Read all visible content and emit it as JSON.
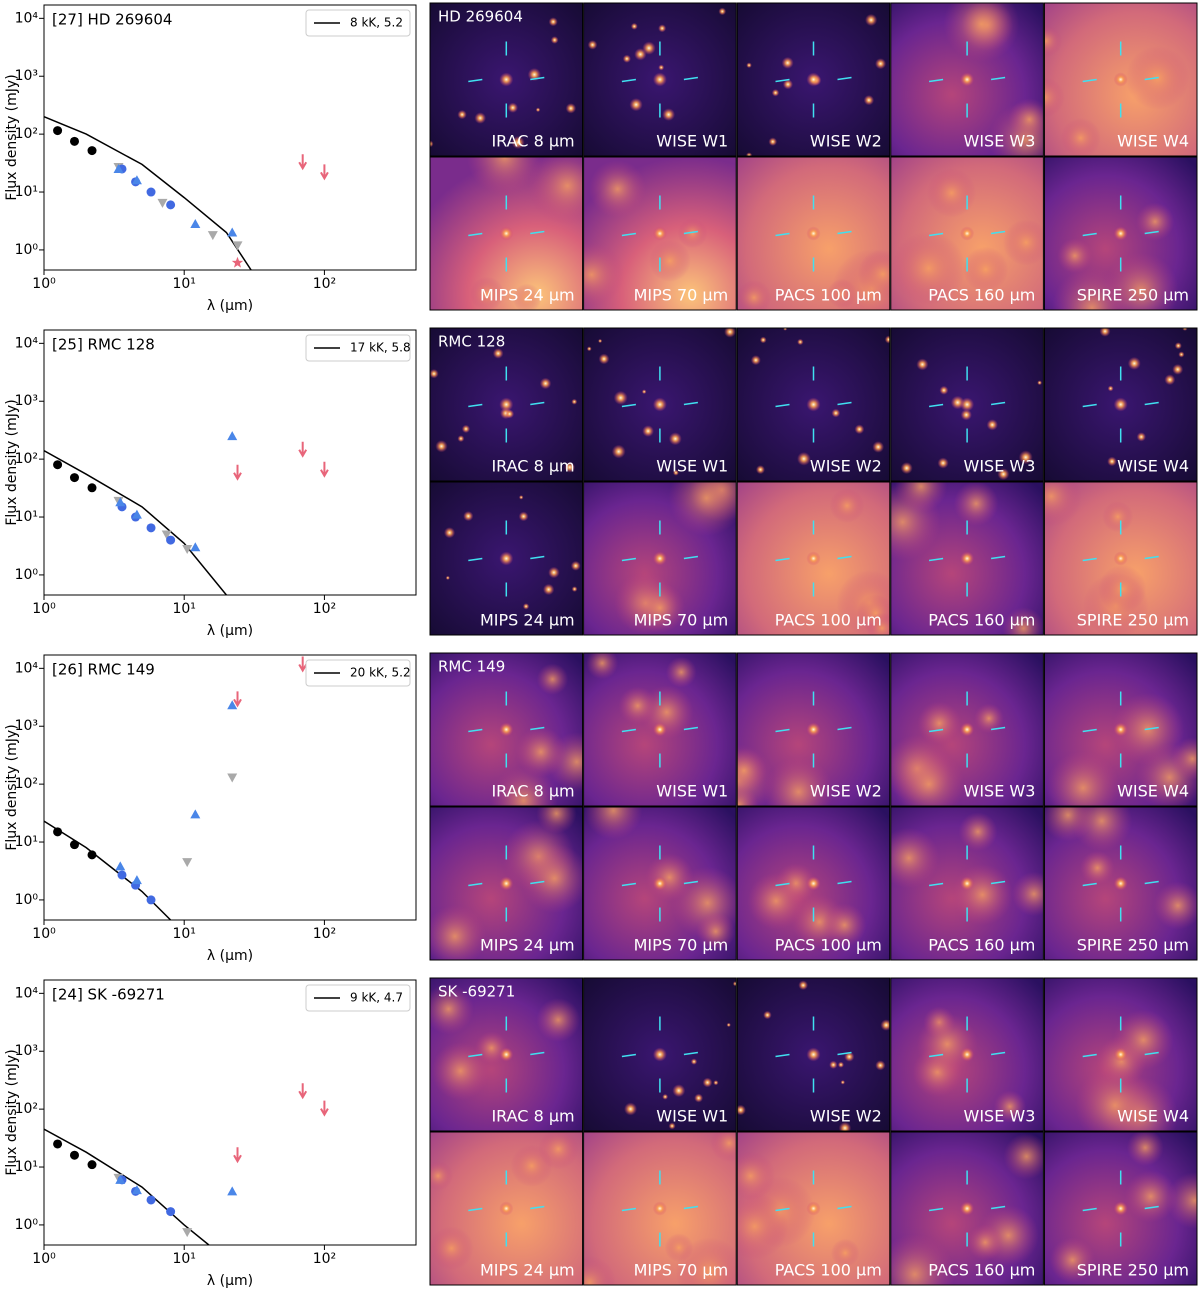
{
  "chart_data": [
    {
      "type": "scatter",
      "title": "[27] HD 269604",
      "xlabel": "λ (μm)",
      "ylabel": "Flux density (mJy)",
      "log_x": true,
      "log_y": true,
      "legend": "upper right",
      "xlim": [
        1,
        450
      ],
      "ylim": [
        0.45,
        17000
      ],
      "xticks": [
        {
          "value": 1,
          "label": "10⁰"
        },
        {
          "value": 10,
          "label": "10¹"
        },
        {
          "value": 100,
          "label": "10²"
        }
      ],
      "yticks": [
        {
          "value": 1,
          "label": "10⁰"
        },
        {
          "value": 10,
          "label": "10¹"
        },
        {
          "value": 100,
          "label": "10²"
        },
        {
          "value": 1000,
          "label": "10³"
        },
        {
          "value": 10000,
          "label": "10⁴"
        }
      ],
      "series": [
        {
          "name": "8 kK, 5.2",
          "color": "#000000",
          "marker": "line",
          "x": [
            1,
            2,
            5,
            10,
            20,
            30
          ],
          "values": [
            200,
            100,
            30,
            8,
            2,
            0.45
          ]
        },
        {
          "color": "#000000",
          "marker": "o",
          "x": [
            1.25,
            1.65,
            2.2
          ],
          "values": [
            115,
            75,
            52
          ]
        },
        {
          "color": "#a9a9a9",
          "marker": "v",
          "x": [
            3.4,
            7.0,
            16,
            24
          ],
          "values": [
            27,
            6.5,
            1.8,
            1.2
          ]
        },
        {
          "color": "#4169e1",
          "marker": "o",
          "x": [
            3.6,
            4.5,
            5.8,
            8.0
          ],
          "values": [
            25,
            15,
            10,
            6
          ]
        },
        {
          "color": "#4a86e8",
          "marker": "^",
          "x": [
            3.4,
            4.6,
            12,
            22
          ],
          "values": [
            25,
            16,
            2.8,
            2.0
          ]
        },
        {
          "color": "#e8657a",
          "marker": "*",
          "x": [
            24
          ],
          "values": [
            0.6
          ]
        },
        {
          "color": "#e8657a",
          "marker": "arrow",
          "x": [
            70,
            100
          ],
          "values": [
            45,
            30
          ]
        }
      ]
    },
    {
      "type": "scatter",
      "title": "[25] RMC 128",
      "xlabel": "λ (μm)",
      "ylabel": "Flux density (mJy)",
      "log_x": true,
      "log_y": true,
      "legend": "upper right",
      "xlim": [
        1,
        450
      ],
      "ylim": [
        0.45,
        17000
      ],
      "xticks": [
        {
          "value": 1,
          "label": "10⁰"
        },
        {
          "value": 10,
          "label": "10¹"
        },
        {
          "value": 100,
          "label": "10²"
        }
      ],
      "yticks": [
        {
          "value": 1,
          "label": "10⁰"
        },
        {
          "value": 10,
          "label": "10¹"
        },
        {
          "value": 100,
          "label": "10²"
        },
        {
          "value": 1000,
          "label": "10³"
        },
        {
          "value": 10000,
          "label": "10⁴"
        }
      ],
      "series": [
        {
          "name": "17 kK, 5.8",
          "color": "#000000",
          "marker": "line",
          "x": [
            1,
            2,
            5,
            10,
            20
          ],
          "values": [
            140,
            55,
            15,
            3.5,
            0.45
          ]
        },
        {
          "color": "#000000",
          "marker": "o",
          "x": [
            1.25,
            1.65,
            2.2
          ],
          "values": [
            80,
            48,
            32
          ]
        },
        {
          "color": "#a9a9a9",
          "marker": "v",
          "x": [
            3.4,
            7.5,
            10.5
          ],
          "values": [
            19,
            5,
            2.8
          ]
        },
        {
          "color": "#4169e1",
          "marker": "o",
          "x": [
            3.6,
            4.5,
            5.8,
            8.0
          ],
          "values": [
            15,
            10,
            6.5,
            4
          ]
        },
        {
          "color": "#4a86e8",
          "marker": "^",
          "x": [
            3.5,
            4.6,
            12,
            22
          ],
          "values": [
            18,
            11,
            3,
            250
          ]
        },
        {
          "color": "#e8657a",
          "marker": "arrow",
          "x": [
            24,
            70,
            100
          ],
          "values": [
            80,
            200,
            90
          ]
        }
      ]
    },
    {
      "type": "scatter",
      "title": "[26] RMC 149",
      "xlabel": "λ (μm)",
      "ylabel": "Flux density (mJy)",
      "log_x": true,
      "log_y": true,
      "legend": "upper right",
      "xlim": [
        1,
        450
      ],
      "ylim": [
        0.45,
        17000
      ],
      "xticks": [
        {
          "value": 1,
          "label": "10⁰"
        },
        {
          "value": 10,
          "label": "10¹"
        },
        {
          "value": 100,
          "label": "10²"
        }
      ],
      "yticks": [
        {
          "value": 1,
          "label": "10⁰"
        },
        {
          "value": 10,
          "label": "10¹"
        },
        {
          "value": 100,
          "label": "10²"
        },
        {
          "value": 1000,
          "label": "10³"
        },
        {
          "value": 10000,
          "label": "10⁴"
        }
      ],
      "series": [
        {
          "name": "20 kK, 5.2",
          "color": "#000000",
          "marker": "line",
          "x": [
            1,
            2,
            5,
            8
          ],
          "values": [
            23,
            8,
            1.4,
            0.45
          ]
        },
        {
          "color": "#000000",
          "marker": "o",
          "x": [
            1.25,
            1.65,
            2.2
          ],
          "values": [
            15,
            9,
            6
          ]
        },
        {
          "color": "#a9a9a9",
          "marker": "v",
          "x": [
            10.5,
            22
          ],
          "values": [
            4.5,
            130
          ]
        },
        {
          "color": "#4169e1",
          "marker": "o",
          "x": [
            3.6,
            4.5,
            5.8
          ],
          "values": [
            2.7,
            1.8,
            1
          ]
        },
        {
          "color": "#4a86e8",
          "marker": "^",
          "x": [
            3.5,
            4.6,
            12,
            22
          ],
          "values": [
            3.8,
            2.2,
            30,
            2300
          ]
        },
        {
          "color": "#e8657a",
          "marker": "arrow",
          "x": [
            24,
            70
          ],
          "values": [
            4000,
            16000
          ]
        }
      ]
    },
    {
      "type": "scatter",
      "title": "[24] SK -69271",
      "xlabel": "λ (μm)",
      "ylabel": "Flux density (mJy)",
      "log_x": true,
      "log_y": true,
      "legend": "upper right",
      "xlim": [
        1,
        450
      ],
      "ylim": [
        0.45,
        17000
      ],
      "xticks": [
        {
          "value": 1,
          "label": "10⁰"
        },
        {
          "value": 10,
          "label": "10¹"
        },
        {
          "value": 100,
          "label": "10²"
        }
      ],
      "yticks": [
        {
          "value": 1,
          "label": "10⁰"
        },
        {
          "value": 10,
          "label": "10¹"
        },
        {
          "value": 100,
          "label": "10²"
        },
        {
          "value": 1000,
          "label": "10³"
        },
        {
          "value": 10000,
          "label": "10⁴"
        }
      ],
      "series": [
        {
          "name": "9 kK, 4.7",
          "color": "#000000",
          "marker": "line",
          "x": [
            1,
            2,
            5,
            10,
            15
          ],
          "values": [
            45,
            18,
            4.5,
            1,
            0.45
          ]
        },
        {
          "color": "#000000",
          "marker": "o",
          "x": [
            1.25,
            1.65,
            2.2
          ],
          "values": [
            25,
            16,
            11
          ]
        },
        {
          "color": "#a9a9a9",
          "marker": "v",
          "x": [
            3.4,
            10.5
          ],
          "values": [
            6.5,
            0.75
          ]
        },
        {
          "color": "#4169e1",
          "marker": "o",
          "x": [
            3.6,
            4.5,
            5.8,
            8.0
          ],
          "values": [
            6,
            3.8,
            2.7,
            1.7
          ]
        },
        {
          "color": "#4a86e8",
          "marker": "^",
          "x": [
            3.5,
            4.6,
            22
          ],
          "values": [
            6,
            4,
            3.8
          ]
        },
        {
          "color": "#e8657a",
          "marker": "arrow",
          "x": [
            24,
            70,
            100
          ],
          "values": [
            22,
            280,
            140
          ]
        }
      ]
    }
  ],
  "image_panels": [
    {
      "target": "HD 269604",
      "bands": [
        "IRAC 8 μm",
        "WISE W1",
        "WISE W2",
        "WISE W3",
        "WISE W4",
        "MIPS 24 μm",
        "MIPS 70 μm",
        "PACS 100 μm",
        "PACS 160 μm",
        "SPIRE 250 μm"
      ]
    },
    {
      "target": "RMC 128",
      "bands": [
        "IRAC 8 μm",
        "WISE W1",
        "WISE W2",
        "WISE W3",
        "WISE W4",
        "MIPS 24 μm",
        "MIPS 70 μm",
        "PACS 100 μm",
        "PACS 160 μm",
        "SPIRE 250 μm"
      ]
    },
    {
      "target": "RMC 149",
      "bands": [
        "IRAC 8 μm",
        "WISE W1",
        "WISE W2",
        "WISE W3",
        "WISE W4",
        "MIPS 24 μm",
        "MIPS 70 μm",
        "PACS 100 μm",
        "PACS 160 μm",
        "SPIRE 250 μm"
      ]
    },
    {
      "target": "SK -69271",
      "bands": [
        "IRAC 8 μm",
        "WISE W1",
        "WISE W2",
        "WISE W3",
        "WISE W4",
        "MIPS 24 μm",
        "MIPS 70 μm",
        "PACS 100 μm",
        "PACS 160 μm",
        "SPIRE 250 μm"
      ]
    }
  ]
}
